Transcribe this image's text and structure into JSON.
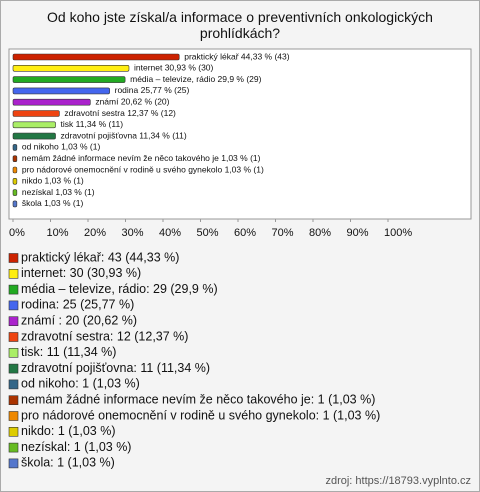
{
  "chart_data": {
    "type": "bar",
    "title": "Od koho jste získal/a informace o preventivních onkologických prohlídkách?",
    "categories": [
      "praktický lékař",
      "internet",
      "média – televize, rádio",
      "rodina",
      "známí",
      "zdravotní sestra",
      "tisk",
      "zdravotní pojišťovna",
      "od nikoho",
      "nemám žádné informace nevím že něco takového je",
      "pro nádorové onemocnění v rodině u svého gynekolo",
      "nikdo",
      "nezískal",
      "škola"
    ],
    "values": [
      44.33,
      30.93,
      29.9,
      25.77,
      20.62,
      12.37,
      11.34,
      11.34,
      1.03,
      1.03,
      1.03,
      1.03,
      1.03,
      1.03
    ],
    "value_labels": [
      "praktický lékař 44,33 % (43)",
      "internet 30,93 % (30)",
      "média – televize, rádio 29,9 % (29)",
      "rodina 25,77 % (25)",
      "známí  20,62 % (20)",
      "zdravotní sestra 12,37 % (12)",
      "tisk 11,34 % (11)",
      "zdravotní pojišťovna 11,34 % (11)",
      "od nikoho 1,03 % (1)",
      "nemám žádné informace nevím že něco takového je 1,03 % (1)",
      "pro nádorové onemocnění v rodině u svého gynekolo 1,03 % (1)",
      "nikdo 1,03 % (1)",
      "nezískal 1,03 % (1)",
      "škola 1,03 % (1)"
    ],
    "legend_labels": [
      "praktický lékař: 43 (44,33 %)",
      "internet: 30 (30,93 %)",
      "média – televize, rádio: 29 (29,9 %)",
      "rodina: 25 (25,77 %)",
      "známí : 20 (20,62 %)",
      "zdravotní sestra: 12 (12,37 %)",
      "tisk: 11 (11,34 %)",
      "zdravotní pojišťovna: 11 (11,34 %)",
      "od nikoho: 1 (1,03 %)",
      "nemám žádné informace nevím že něco takového je: 1 (1,03 %)",
      "pro nádorové onemocnění v rodině u svého gynekolo: 1 (1,03 %)",
      "nikdo: 1 (1,03 %)",
      "nezískal: 1 (1,03 %)",
      "škola: 1 (1,03 %)"
    ],
    "colors": [
      "#cc2200",
      "#ffee11",
      "#22aa22",
      "#4466ee",
      "#aa22cc",
      "#ee4411",
      "#aaee66",
      "#227744",
      "#336688",
      "#aa3300",
      "#ee8800",
      "#ddcc00",
      "#66bb22",
      "#5577cc"
    ],
    "xlim": [
      0,
      100
    ],
    "xticks": [
      {
        "value": 0,
        "label": "0%"
      },
      {
        "value": 10,
        "label": "10%"
      },
      {
        "value": 20,
        "label": "20%"
      },
      {
        "value": 30,
        "label": "30%"
      },
      {
        "value": 40,
        "label": "40%"
      },
      {
        "value": 50,
        "label": "50%"
      },
      {
        "value": 60,
        "label": "60%"
      },
      {
        "value": 70,
        "label": "70%"
      },
      {
        "value": 80,
        "label": "80%"
      },
      {
        "value": 90,
        "label": "90%"
      },
      {
        "value": 100,
        "label": "100%"
      }
    ],
    "source": "zdroj: https://18793.vyplnto.cz"
  }
}
